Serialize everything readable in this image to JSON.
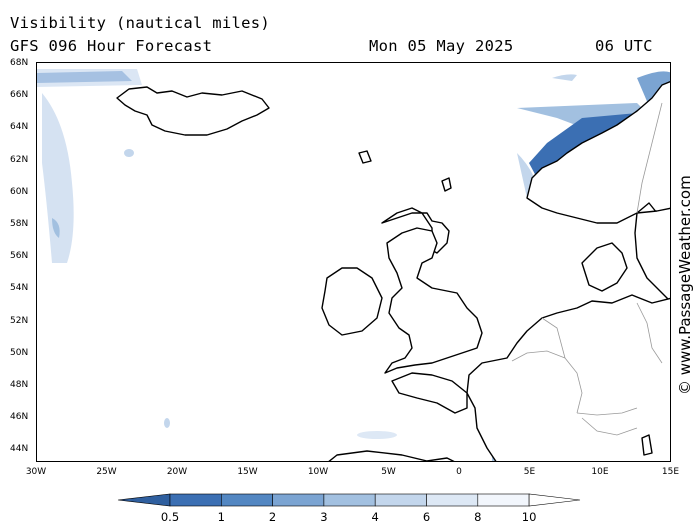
{
  "header": {
    "title": "Visibility (nautical miles)",
    "subtitle": "GFS 096 Hour Forecast",
    "date": "Mon 05 May 2025",
    "time": "06 UTC"
  },
  "credit": "© www.PassageWeather.com",
  "map": {
    "projection": "mercator",
    "lon_range": [
      -30,
      15
    ],
    "lat_range": [
      43,
      68
    ],
    "lat_ticks": [
      "68N",
      "66N",
      "64N",
      "62N",
      "60N",
      "58N",
      "56N",
      "54N",
      "52N",
      "50N",
      "48N",
      "46N",
      "44N"
    ],
    "lon_ticks": [
      "30W",
      "25W",
      "20W",
      "15W",
      "10W",
      "5W",
      "0",
      "5E",
      "10E",
      "15E"
    ],
    "land_color": "#ffffff",
    "coast_color": "#000000",
    "border_color": "#9a9a9a"
  },
  "legend": {
    "labels": [
      "0.5",
      "1",
      "2",
      "3",
      "4",
      "6",
      "8",
      "10"
    ],
    "colors": [
      "#3b6fb3",
      "#5387c2",
      "#7ba4d2",
      "#a2c0e0",
      "#c3d6ec",
      "#dde8f5",
      "#f2f6fc",
      "#ffffff"
    ]
  }
}
